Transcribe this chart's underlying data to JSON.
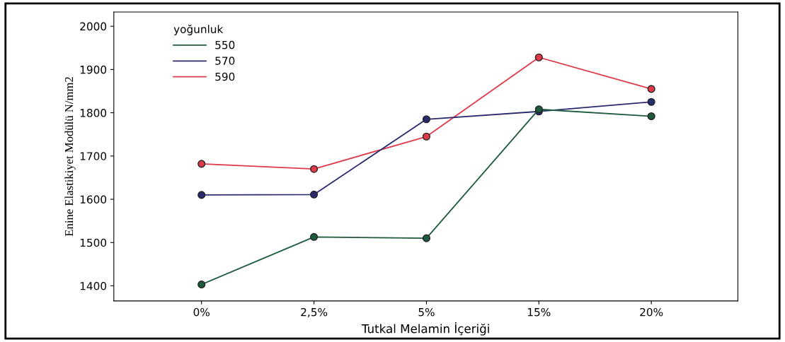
{
  "chart_data": {
    "type": "line",
    "xlabel": "Tutkal Melamin İçeriği",
    "ylabel": "Enine Elastikiyet Modülü N/mm2",
    "legend_title": "yoğunluk",
    "categories": [
      "0%",
      "2,5%",
      "5%",
      "15%",
      "20%"
    ],
    "series": [
      {
        "name": "550",
        "color": "#1e5a3c",
        "values": [
          1403,
          1513,
          1510,
          1808,
          1792
        ]
      },
      {
        "name": "570",
        "color": "#2a2a6e",
        "values": [
          1610,
          1611,
          1785,
          1803,
          1825
        ]
      },
      {
        "name": "590",
        "color": "#e03a4a",
        "values": [
          1682,
          1670,
          1745,
          1928,
          1855
        ]
      }
    ],
    "ylim": [
      1365,
      2033
    ],
    "yticks": [
      1400,
      1500,
      1600,
      1700,
      1800,
      1900,
      2000
    ],
    "grid": false,
    "legend": "top left",
    "marker": "circle",
    "line_style": "solid"
  }
}
